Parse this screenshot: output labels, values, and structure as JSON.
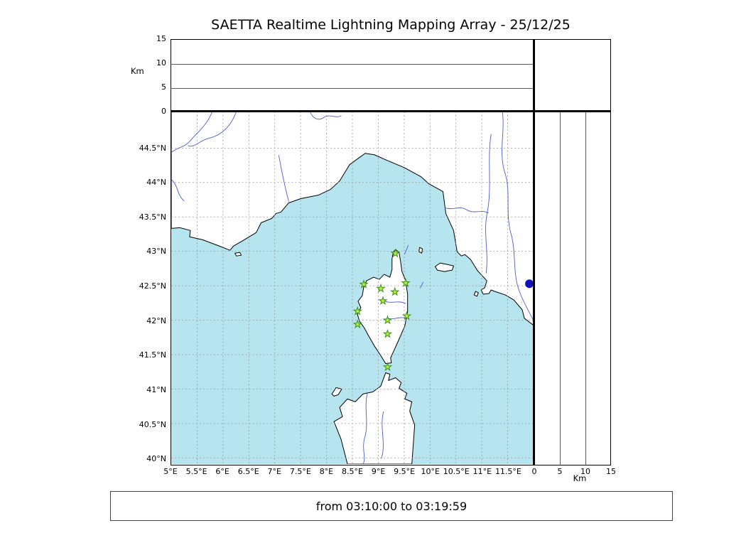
{
  "title": "SAETTA Realtime Lightning Mapping Array - 25/12/25",
  "footer": {
    "time_range": "from 03:10:00 to 03:19:59"
  },
  "axes": {
    "altitude": {
      "label": "Km",
      "max": 15,
      "ticks": [
        0,
        5,
        10,
        15
      ],
      "tick_labels": [
        "0",
        "5",
        "10",
        "15"
      ]
    },
    "lon": {
      "min": 5,
      "max": 12,
      "ticks": [
        5,
        5.5,
        6,
        6.5,
        7,
        7.5,
        8,
        8.5,
        9,
        9.5,
        10,
        10.5,
        11,
        11.5
      ],
      "labels": [
        "5°E",
        "5.5°E",
        "6°E",
        "6.5°E",
        "7°E",
        "7.5°E",
        "8°E",
        "8.5°E",
        "9°E",
        "9.5°E",
        "10°E",
        "10.5°E",
        "11°E",
        "11.5°E"
      ]
    },
    "lat": {
      "min": 39.91,
      "max": 45.03,
      "ticks": [
        40,
        40.5,
        41,
        41.5,
        42,
        42.5,
        43,
        43.5,
        44,
        44.5
      ],
      "labels": [
        "40°N",
        "40.5°N",
        "41°N",
        "41.5°N",
        "42°N",
        "42.5°N",
        "43°N",
        "43.5°N",
        "44°N",
        "44.5°N"
      ]
    }
  },
  "stations": [
    {
      "lon": 9.33,
      "lat": 42.97
    },
    {
      "lon": 8.72,
      "lat": 42.52
    },
    {
      "lon": 9.05,
      "lat": 42.46
    },
    {
      "lon": 9.32,
      "lat": 42.41
    },
    {
      "lon": 9.53,
      "lat": 42.54
    },
    {
      "lon": 9.09,
      "lat": 42.28
    },
    {
      "lon": 8.6,
      "lat": 42.13
    },
    {
      "lon": 9.55,
      "lat": 42.06
    },
    {
      "lon": 8.6,
      "lat": 41.94
    },
    {
      "lon": 9.18,
      "lat": 42.0
    },
    {
      "lon": 9.18,
      "lat": 41.8
    },
    {
      "lon": 9.18,
      "lat": 41.32
    }
  ],
  "events": [
    {
      "lon": 11.92,
      "lat": 42.53
    }
  ],
  "colors": {
    "sea": "#b6e4ef",
    "land": "#ffffff",
    "river": "#4d5bd0",
    "grid": "#999999",
    "station_fill": "#b8f13c",
    "station_edge": "#3f8f1f",
    "event": "#1111bb"
  }
}
